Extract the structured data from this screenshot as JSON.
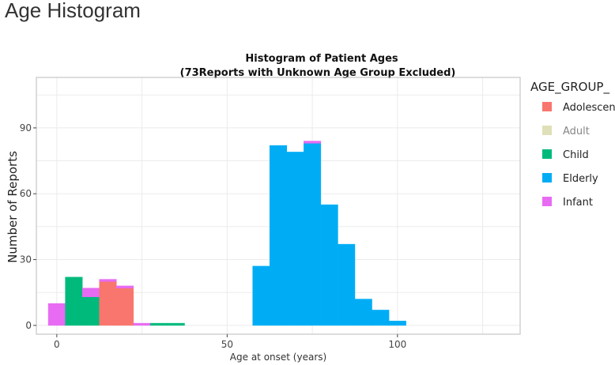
{
  "page": {
    "title": "Age Histogram"
  },
  "chart_data": {
    "type": "bar",
    "title": "Histogram of Patient Ages",
    "subtitle": "(73Reports with Unknown Age Group Excluded)",
    "xlabel": "Age at onset (years)",
    "ylabel": "Number of Reports",
    "xlim": [
      -6,
      136
    ],
    "ylim": [
      -4,
      113
    ],
    "xticks": [
      0,
      50,
      100
    ],
    "yticks": [
      0,
      30,
      60,
      90
    ],
    "grid": true,
    "bin_width": 5,
    "legend": {
      "title": "AGE_GROUP_",
      "placement": "right",
      "entries": [
        {
          "name": "Adolescent",
          "color": "#F8766D",
          "hidden": false
        },
        {
          "name": "Adult",
          "color": "#C6C77E",
          "hidden": true
        },
        {
          "name": "Child",
          "color": "#00BA7C",
          "hidden": false
        },
        {
          "name": "Elderly",
          "color": "#00ADF5",
          "hidden": false
        },
        {
          "name": "Infant",
          "color": "#E76BF3",
          "hidden": false
        }
      ]
    },
    "bin_starts": [
      -2.5,
      2.5,
      7.5,
      12.5,
      17.5,
      22.5,
      27.5,
      32.5,
      37.5,
      42.5,
      47.5,
      52.5,
      57.5,
      62.5,
      67.5,
      72.5,
      77.5,
      82.5,
      87.5,
      92.5,
      97.5
    ],
    "series": [
      {
        "name": "Adolescent",
        "values": [
          0,
          0,
          0,
          20,
          17,
          0,
          0,
          0,
          0,
          0,
          0,
          0,
          0,
          0,
          0,
          0,
          0,
          0,
          0,
          0,
          0
        ]
      },
      {
        "name": "Child",
        "values": [
          0,
          22,
          13,
          0,
          0,
          0,
          1,
          1,
          0,
          0,
          0,
          0,
          0,
          0,
          0,
          0,
          0,
          0,
          0,
          0,
          0
        ]
      },
      {
        "name": "Elderly",
        "values": [
          0,
          0,
          0,
          0,
          0,
          0,
          0,
          0,
          0,
          0,
          0,
          0,
          27,
          82,
          79,
          83,
          55,
          37,
          12,
          7,
          2
        ]
      },
      {
        "name": "Infant",
        "values": [
          10,
          0,
          4,
          1,
          1,
          1,
          0,
          0,
          0,
          0,
          0,
          0,
          0,
          0,
          0,
          1,
          0,
          0,
          0,
          0,
          0
        ]
      }
    ]
  }
}
